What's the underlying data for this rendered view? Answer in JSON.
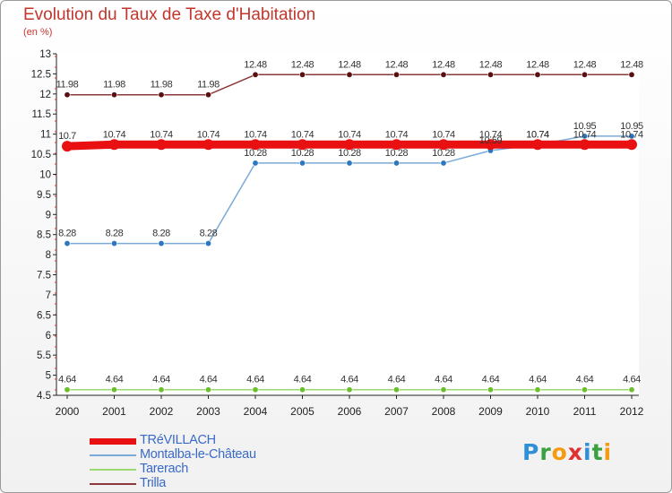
{
  "title": "Evolution du Taux de Taxe d'Habitation",
  "unit": "(en %)",
  "logo": {
    "letters": [
      "P",
      "r",
      "o",
      "x",
      "i",
      "t",
      "i"
    ],
    "colors": [
      "#2f8fd8",
      "#3aa040",
      "#f39c12",
      "#e03030",
      "#2f8fd8",
      "#3aa040",
      "#f39c12"
    ]
  },
  "chart_data": {
    "type": "line",
    "title": "Evolution du Taux de Taxe d'Habitation",
    "ylabel": "(en %)",
    "xlabel": "",
    "ylim": [
      4.5,
      13
    ],
    "yticks": [
      4.5,
      5,
      5.5,
      6,
      6.5,
      7,
      7.5,
      8,
      8.5,
      9,
      9.5,
      10,
      10.5,
      11,
      11.5,
      12,
      12.5,
      13
    ],
    "x": [
      "2000",
      "2001",
      "2002",
      "2003",
      "2004",
      "2005",
      "2006",
      "2007",
      "2008",
      "2009",
      "2010",
      "2011",
      "2012"
    ],
    "grid": false,
    "legend": "bottom-left",
    "series": [
      {
        "name": "TRéVILLACH",
        "color": "#e81010",
        "marker": "#e81010",
        "width": 9,
        "values": [
          10.7,
          10.74,
          10.74,
          10.74,
          10.74,
          10.74,
          10.74,
          10.74,
          10.74,
          10.74,
          10.74,
          10.74,
          10.74
        ],
        "labels": [
          "10.7",
          "10.74",
          "10.74",
          "10.74",
          "10.74",
          "10.74",
          "10.74",
          "10.74",
          "10.74",
          "10.74",
          "10.74",
          "10.74",
          "10.74"
        ]
      },
      {
        "name": "Montalba-le-Château",
        "color": "#7aaad8",
        "marker": "#2d76c0",
        "width": 1.5,
        "values": [
          8.28,
          8.28,
          8.28,
          8.28,
          10.28,
          10.28,
          10.28,
          10.28,
          10.28,
          10.59,
          10.74,
          10.95,
          10.95
        ],
        "labels": [
          "8.28",
          "8.28",
          "8.28",
          "8.28",
          "10.28",
          "10.28",
          "10.28",
          "10.28",
          "10.28",
          "10.59",
          "10.74",
          "10.95",
          "10.95"
        ]
      },
      {
        "name": "Tarerach",
        "color": "#9ad870",
        "marker": "#6cbf2c",
        "width": 1.5,
        "values": [
          4.64,
          4.64,
          4.64,
          4.64,
          4.64,
          4.64,
          4.64,
          4.64,
          4.64,
          4.64,
          4.64,
          4.64,
          4.64
        ],
        "labels": [
          "4.64",
          "4.64",
          "4.64",
          "4.64",
          "4.64",
          "4.64",
          "4.64",
          "4.64",
          "4.64",
          "4.64",
          "4.64",
          "4.64",
          "4.64"
        ]
      },
      {
        "name": "Trilla",
        "color": "#8a3a3a",
        "marker": "#5a1010",
        "width": 1.5,
        "values": [
          11.98,
          11.98,
          11.98,
          11.98,
          12.48,
          12.48,
          12.48,
          12.48,
          12.48,
          12.48,
          12.48,
          12.48,
          12.48
        ],
        "labels": [
          "11.98",
          "11.98",
          "11.98",
          "11.98",
          "12.48",
          "12.48",
          "12.48",
          "12.48",
          "12.48",
          "12.48",
          "12.48",
          "12.48",
          "12.48"
        ]
      }
    ]
  }
}
